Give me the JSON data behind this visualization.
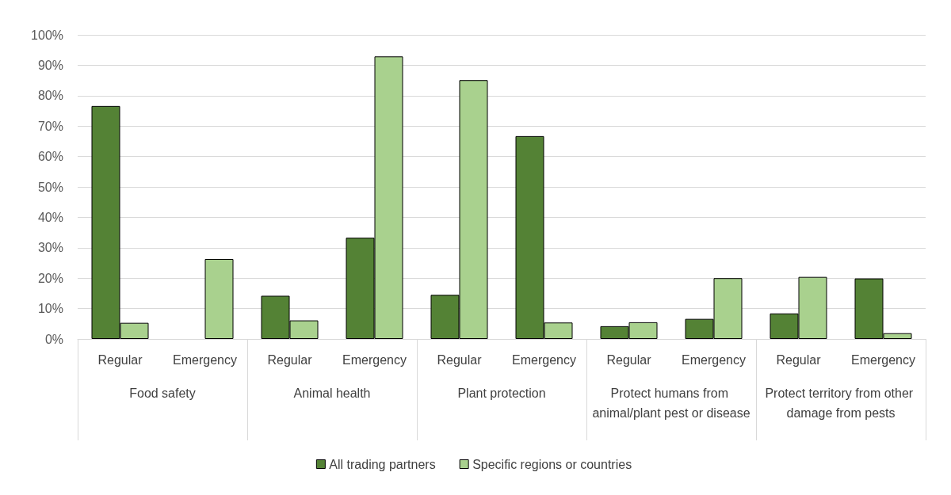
{
  "chart_data": {
    "type": "bar",
    "categories": [
      "Regular",
      "Emergency",
      "Regular",
      "Emergency",
      "Regular",
      "Emergency",
      "Regular",
      "Emergency",
      "Regular",
      "Emergency"
    ],
    "annotations": [
      "Food safety",
      "Animal health",
      "Plant protection",
      "Protect humans from animal/plant pest or disease",
      "Protect territory from other damage from pests"
    ],
    "series": [
      {
        "name": "All trading partners",
        "color": "#548235",
        "values": [
          76.6,
          0,
          14.2,
          33.3,
          14.5,
          66.7,
          4.2,
          6.6,
          8.4,
          19.9
        ]
      },
      {
        "name": "Specific regions or countries",
        "color": "#a9d18e",
        "values": [
          5.3,
          26.3,
          6.1,
          92.9,
          85.1,
          5.4,
          5.5,
          20.0,
          20.4,
          1.9
        ]
      }
    ],
    "ylim": [
      0,
      100
    ],
    "yticks": [
      {
        "value": 0,
        "label": "0%"
      },
      {
        "value": 10,
        "label": "10%"
      },
      {
        "value": 20,
        "label": "20%"
      },
      {
        "value": 30,
        "label": "30%"
      },
      {
        "value": 40,
        "label": "40%"
      },
      {
        "value": 50,
        "label": "50%"
      },
      {
        "value": 60,
        "label": "60%"
      },
      {
        "value": 70,
        "label": "70%"
      },
      {
        "value": 80,
        "label": "80%"
      },
      {
        "value": 90,
        "label": "90%"
      },
      {
        "value": 100,
        "label": "100%"
      }
    ],
    "grid": "y",
    "legend": "bottom"
  }
}
